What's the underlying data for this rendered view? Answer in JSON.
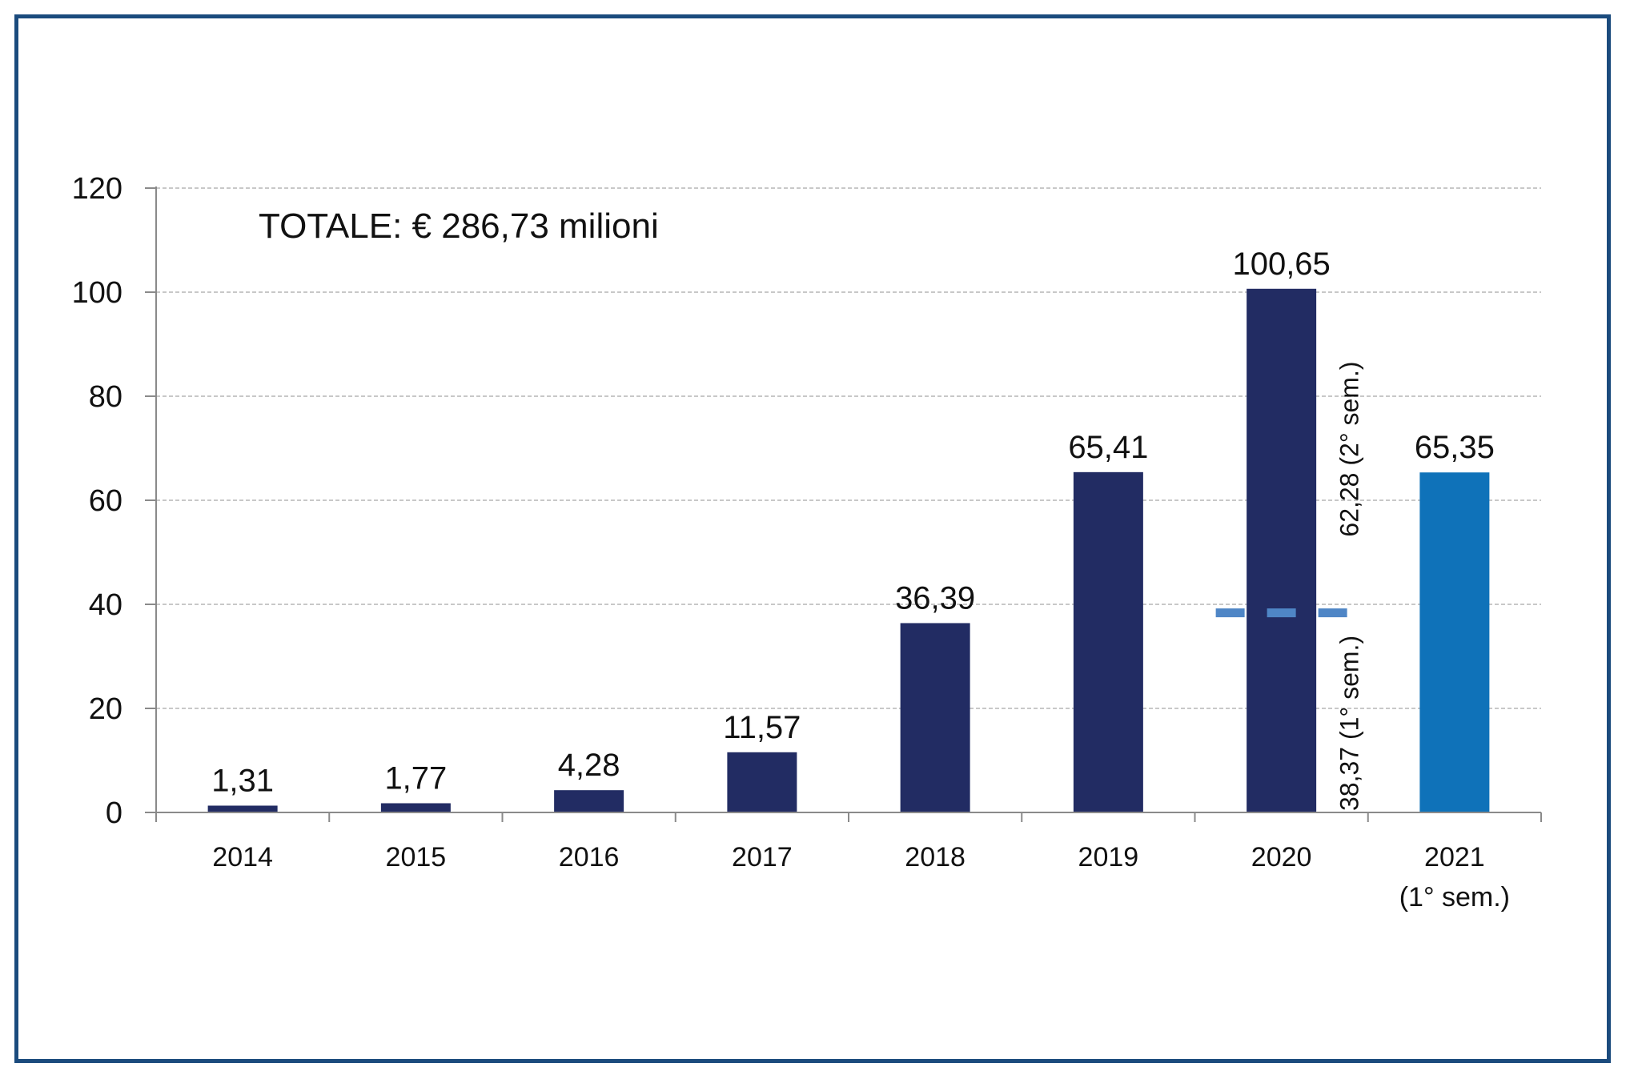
{
  "chart_data": {
    "type": "bar",
    "annotation": "TOTALE: € 286,73 milioni",
    "categories": [
      {
        "line1": "2014",
        "line2": ""
      },
      {
        "line1": "2015",
        "line2": ""
      },
      {
        "line1": "2016",
        "line2": ""
      },
      {
        "line1": "2017",
        "line2": ""
      },
      {
        "line1": "2018",
        "line2": ""
      },
      {
        "line1": "2019",
        "line2": ""
      },
      {
        "line1": "2020",
        "line2": ""
      },
      {
        "line1": "2021",
        "line2": "(1° sem.)"
      }
    ],
    "values": [
      1.31,
      1.77,
      4.28,
      11.57,
      36.39,
      65.41,
      100.65,
      65.35
    ],
    "data_labels": [
      "1,31",
      "1,77",
      "4,28",
      "11,57",
      "36,39",
      "65,41",
      "100,65",
      "65,35"
    ],
    "ylim": [
      0,
      120
    ],
    "yticks": [
      0,
      20,
      40,
      60,
      80,
      100,
      120
    ],
    "ytick_labels": [
      "0",
      "20",
      "40",
      "60",
      "80",
      "100",
      "120"
    ],
    "grid": true,
    "colors": {
      "bar": "#222c63",
      "bar_highlight": "#0f72b9",
      "split_line": "#4f86c6",
      "gridline": "#c8c8c8",
      "axis": "#8a8a8a"
    },
    "split_2020": {
      "first_half_value": 38.37,
      "first_half_label": "38,37 (1° sem.)",
      "second_half_label": "62,28 (2° sem.)"
    }
  }
}
